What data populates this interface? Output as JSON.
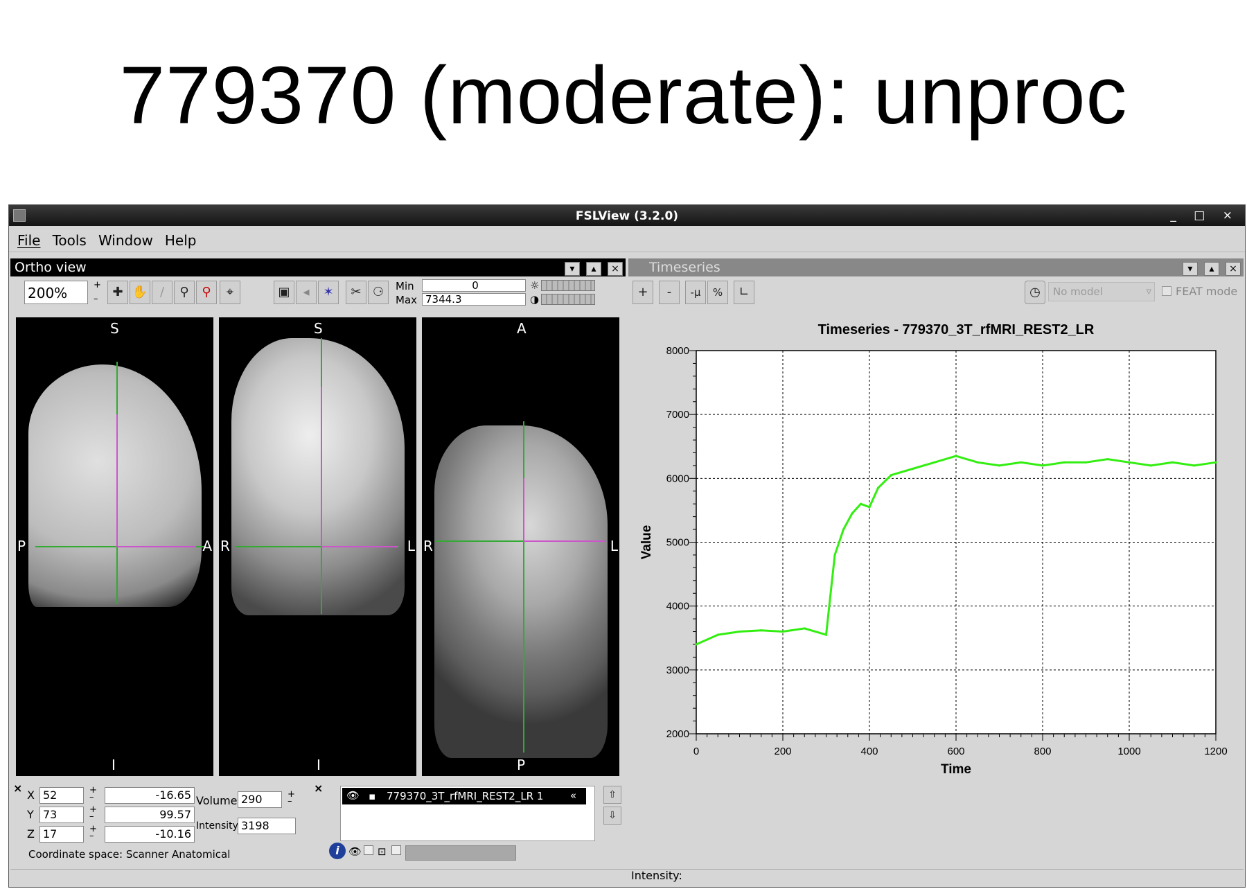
{
  "slide": {
    "title": "779370 (moderate): unproc"
  },
  "window": {
    "title": "FSLView (3.2.0)",
    "controls": "_ □ ×"
  },
  "menu": [
    "File",
    "Tools",
    "Window",
    "Help"
  ],
  "ortho": {
    "title": "Ortho view",
    "zoom": "200%",
    "min_label": "Min",
    "min_value": "0",
    "max_label": "Max",
    "max_value": "7344.3",
    "views": [
      {
        "top": "S",
        "bottom": "I",
        "left": "P",
        "right": "A"
      },
      {
        "top": "S",
        "bottom": "I",
        "left": "R",
        "right": "L"
      },
      {
        "top": "A",
        "bottom": "P",
        "left": "R",
        "right": "L"
      }
    ]
  },
  "coords": {
    "x_label": "X",
    "x": "52",
    "x_mm": "-16.65",
    "y_label": "Y",
    "y": "73",
    "y_mm": "99.57",
    "z_label": "Z",
    "z": "17",
    "z_mm": "-10.16",
    "volume_label": "Volume",
    "volume": "290",
    "intensity_label": "Intensity",
    "intensity": "3198",
    "space": "Coordinate space: Scanner Anatomical"
  },
  "layers": {
    "items": [
      "779370_3T_rfMRI_REST2_LR 1"
    ]
  },
  "timeseries": {
    "title": "Timeseries",
    "buttons": [
      "+",
      "-",
      "-μ",
      "%"
    ],
    "model_placeholder": "No model",
    "feat_mode": "FEAT mode",
    "intensity_status": "Intensity:"
  },
  "chart_data": {
    "type": "line",
    "title": "Timeseries - 779370_3T_rfMRI_REST2_LR",
    "xlabel": "Time",
    "ylabel": "Value",
    "xlim": [
      0,
      1200
    ],
    "ylim": [
      2000,
      8000
    ],
    "xticks": [
      0,
      200,
      400,
      600,
      800,
      1000,
      1200
    ],
    "yticks": [
      2000,
      3000,
      4000,
      5000,
      6000,
      7000,
      8000
    ],
    "grid": true,
    "series": [
      {
        "color": "#33ee11",
        "x": [
          0,
          50,
          100,
          150,
          200,
          250,
          300,
          320,
          340,
          360,
          380,
          400,
          420,
          450,
          500,
          550,
          600,
          650,
          700,
          750,
          800,
          850,
          900,
          950,
          1000,
          1050,
          1100,
          1150,
          1200
        ],
        "values": [
          3400,
          3550,
          3600,
          3620,
          3600,
          3650,
          3550,
          4800,
          5200,
          5450,
          5600,
          5550,
          5850,
          6050,
          6150,
          6250,
          6350,
          6250,
          6200,
          6250,
          6200,
          6250,
          6250,
          6300,
          6250,
          6200,
          6250,
          6200,
          6250
        ]
      }
    ]
  }
}
